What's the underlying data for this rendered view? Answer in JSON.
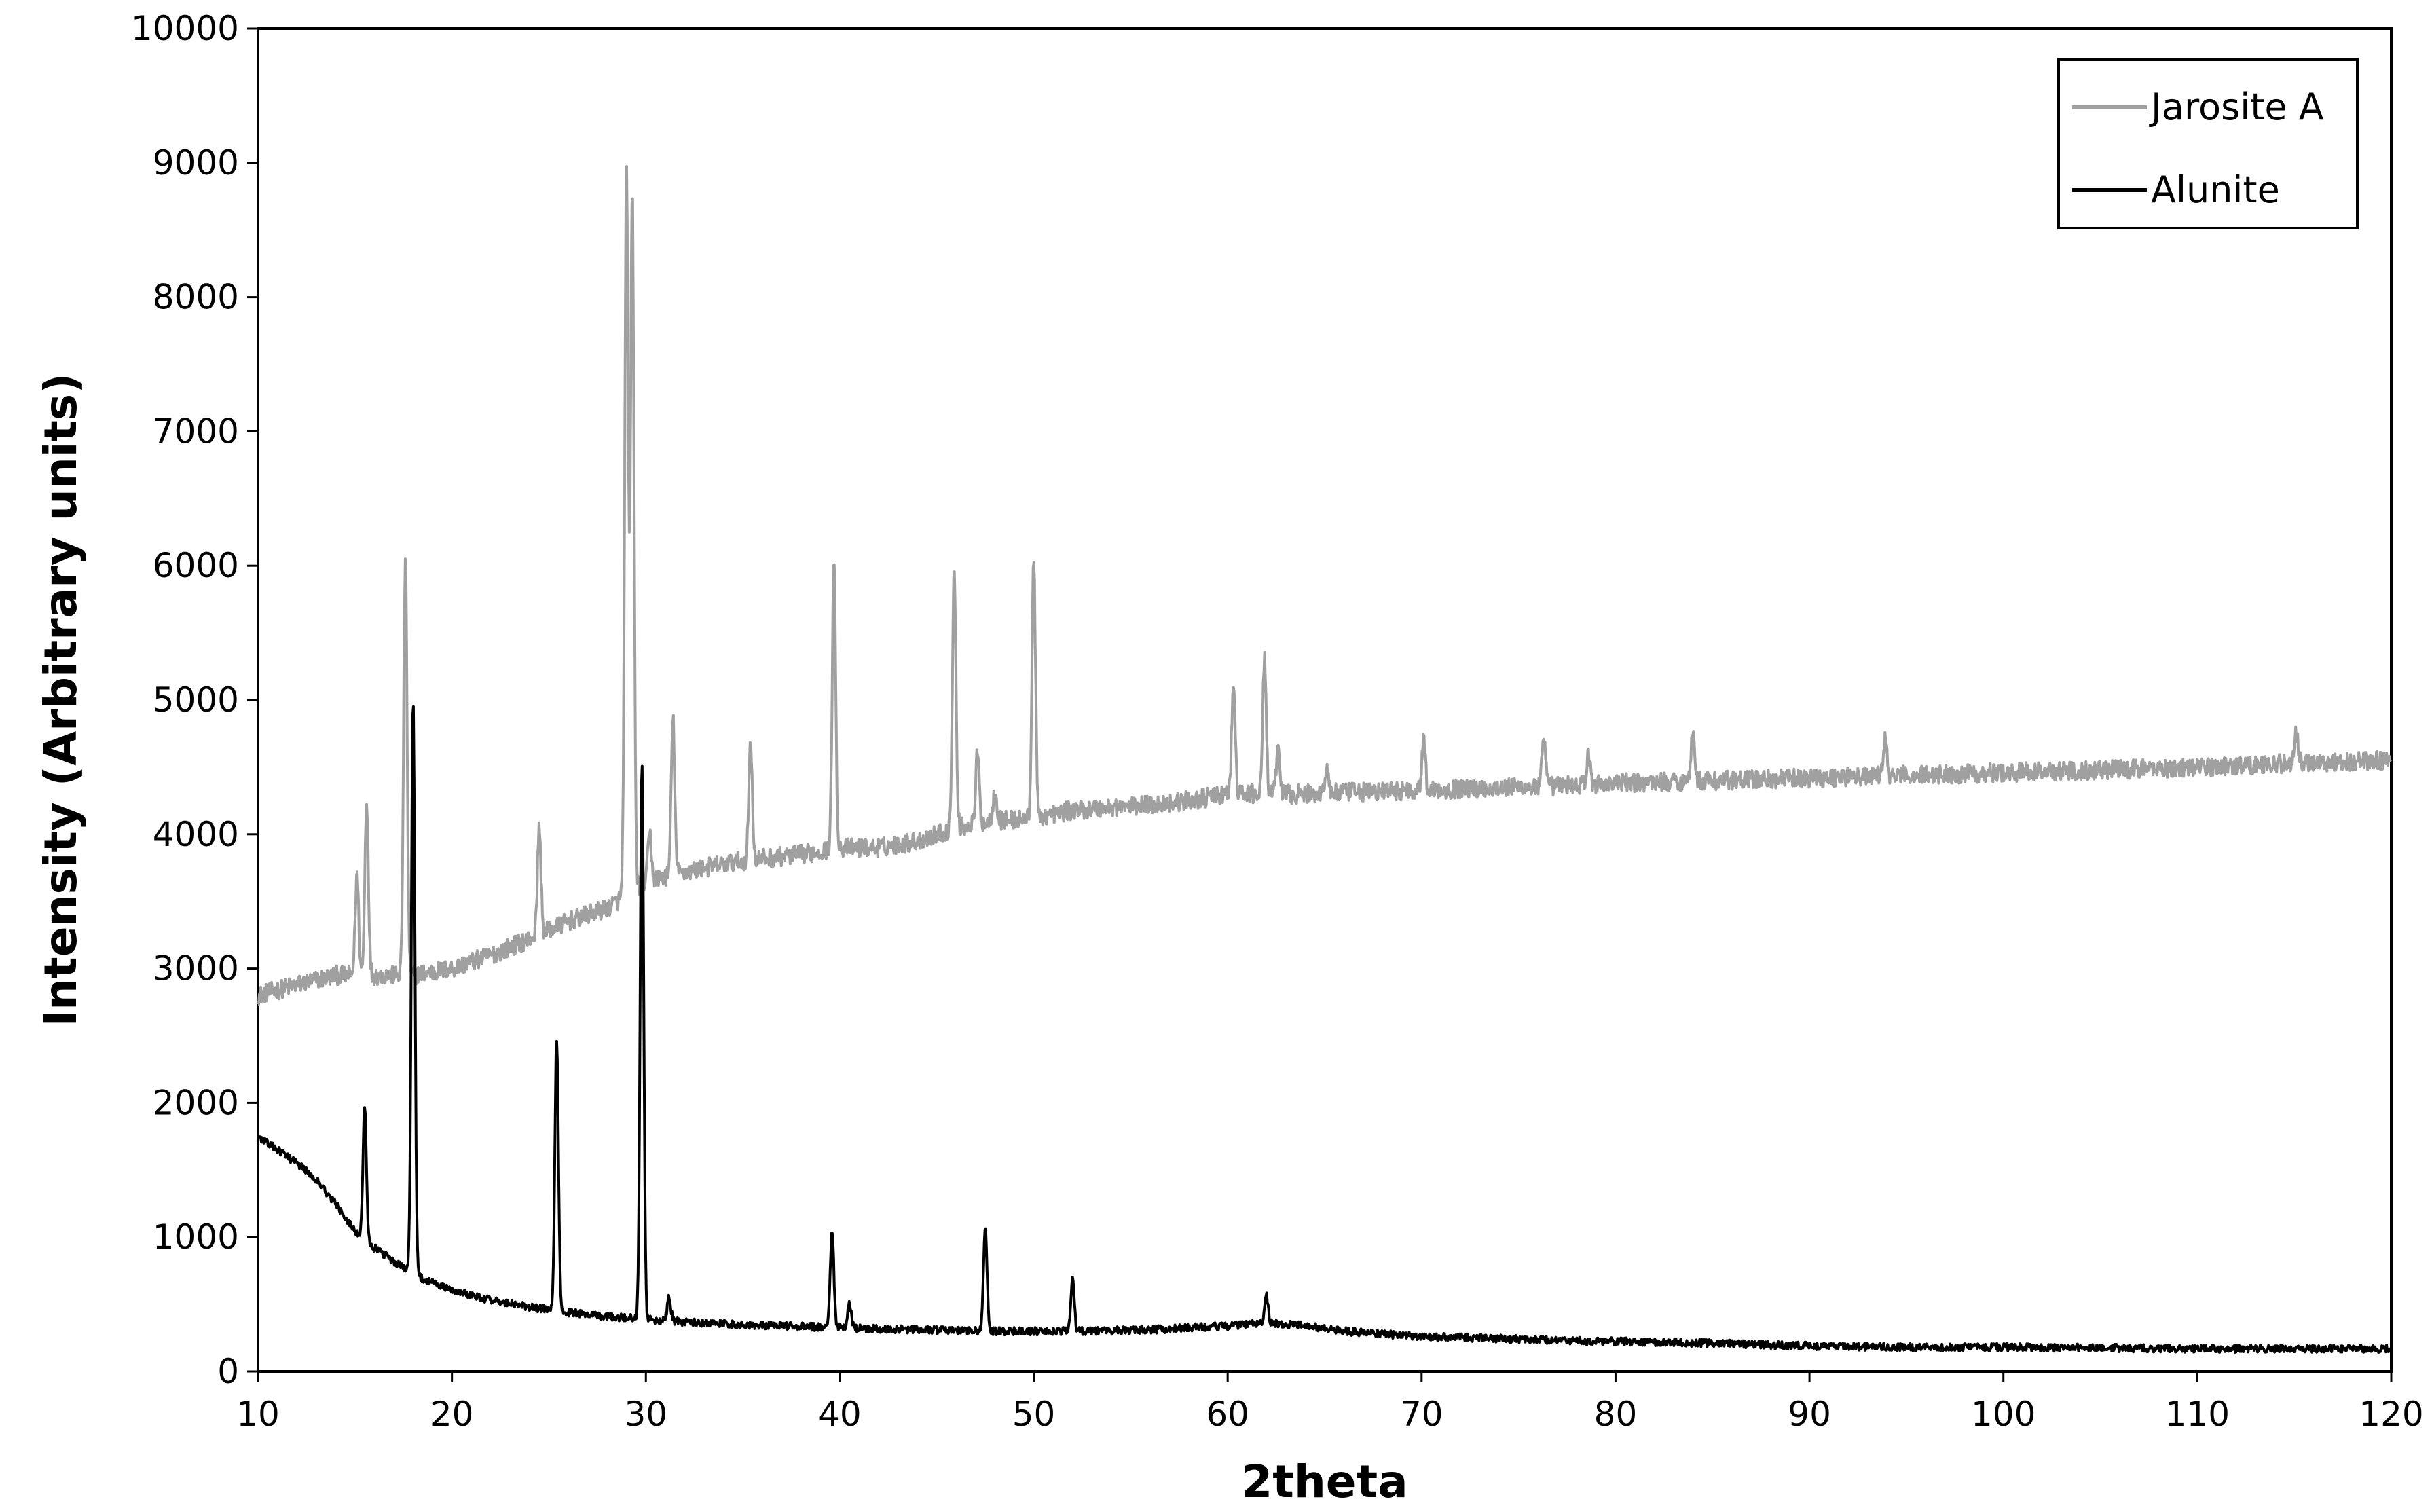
{
  "chart_data": {
    "type": "line",
    "title": "",
    "xlabel": "2theta",
    "ylabel": "Intensity (Arbitrary units)",
    "xlim": [
      10,
      120
    ],
    "ylim": [
      0,
      10000
    ],
    "xticks": [
      10,
      20,
      30,
      40,
      50,
      60,
      70,
      80,
      90,
      100,
      110,
      120
    ],
    "yticks": [
      0,
      1000,
      2000,
      3000,
      4000,
      5000,
      6000,
      7000,
      8000,
      9000,
      10000
    ],
    "grid": false,
    "legend_position": "top-right",
    "series": [
      {
        "name": "Jarosite A",
        "color": "#a0a0a0",
        "baseline": [
          [
            10,
            2800
          ],
          [
            12,
            2880
          ],
          [
            14,
            2950
          ],
          [
            16,
            2950
          ],
          [
            18,
            2950
          ],
          [
            20,
            3000
          ],
          [
            22,
            3100
          ],
          [
            24,
            3220
          ],
          [
            26,
            3350
          ],
          [
            28,
            3450
          ],
          [
            30,
            3650
          ],
          [
            32,
            3720
          ],
          [
            34,
            3780
          ],
          [
            36,
            3820
          ],
          [
            38,
            3850
          ],
          [
            40,
            3900
          ],
          [
            42,
            3900
          ],
          [
            44,
            3950
          ],
          [
            46,
            4050
          ],
          [
            48,
            4100
          ],
          [
            50,
            4120
          ],
          [
            52,
            4180
          ],
          [
            54,
            4200
          ],
          [
            56,
            4220
          ],
          [
            58,
            4250
          ],
          [
            60,
            4300
          ],
          [
            62,
            4300
          ],
          [
            64,
            4300
          ],
          [
            66,
            4310
          ],
          [
            68,
            4320
          ],
          [
            70,
            4330
          ],
          [
            75,
            4350
          ],
          [
            80,
            4380
          ],
          [
            85,
            4400
          ],
          [
            90,
            4420
          ],
          [
            95,
            4440
          ],
          [
            100,
            4460
          ],
          [
            105,
            4480
          ],
          [
            110,
            4500
          ],
          [
            115,
            4530
          ],
          [
            120,
            4550
          ]
        ],
        "peaks": [
          [
            15.1,
            3700
          ],
          [
            15.6,
            4250
          ],
          [
            17.6,
            6050
          ],
          [
            24.5,
            4050
          ],
          [
            29.0,
            8900
          ],
          [
            29.3,
            8800
          ],
          [
            30.2,
            4000
          ],
          [
            31.4,
            4850
          ],
          [
            35.4,
            4700
          ],
          [
            39.7,
            6000
          ],
          [
            45.9,
            5950
          ],
          [
            47.1,
            4600
          ],
          [
            48.0,
            4350
          ],
          [
            50.0,
            6050
          ],
          [
            60.3,
            5100
          ],
          [
            61.9,
            5300
          ],
          [
            62.6,
            4650
          ],
          [
            65.1,
            4500
          ],
          [
            70.1,
            4700
          ],
          [
            76.3,
            4700
          ],
          [
            78.6,
            4580
          ],
          [
            84.0,
            4800
          ],
          [
            93.9,
            4700
          ],
          [
            115.1,
            4750
          ]
        ],
        "noise": 70
      },
      {
        "name": "Alunite",
        "color": "#000000",
        "baseline": [
          [
            10,
            1750
          ],
          [
            11,
            1650
          ],
          [
            12,
            1550
          ],
          [
            13,
            1430
          ],
          [
            14,
            1250
          ],
          [
            15,
            1050
          ],
          [
            16,
            920
          ],
          [
            17,
            820
          ],
          [
            18,
            720
          ],
          [
            19,
            660
          ],
          [
            20,
            610
          ],
          [
            22,
            530
          ],
          [
            24,
            480
          ],
          [
            26,
            440
          ],
          [
            28,
            410
          ],
          [
            30,
            390
          ],
          [
            32,
            370
          ],
          [
            34,
            355
          ],
          [
            36,
            345
          ],
          [
            38,
            335
          ],
          [
            40,
            325
          ],
          [
            44,
            310
          ],
          [
            48,
            300
          ],
          [
            52,
            300
          ],
          [
            56,
            310
          ],
          [
            60,
            340
          ],
          [
            62,
            360
          ],
          [
            64,
            340
          ],
          [
            66,
            300
          ],
          [
            68,
            280
          ],
          [
            70,
            260
          ],
          [
            75,
            240
          ],
          [
            80,
            225
          ],
          [
            85,
            210
          ],
          [
            90,
            190
          ],
          [
            95,
            180
          ],
          [
            100,
            180
          ],
          [
            110,
            170
          ],
          [
            120,
            170
          ]
        ],
        "peaks": [
          [
            15.5,
            1950
          ],
          [
            18.0,
            5000
          ],
          [
            25.4,
            2480
          ],
          [
            29.8,
            4530
          ],
          [
            31.2,
            550
          ],
          [
            39.6,
            1050
          ],
          [
            40.5,
            500
          ],
          [
            47.5,
            1080
          ],
          [
            52.0,
            680
          ],
          [
            62.0,
            560
          ]
        ],
        "noise": 28
      }
    ]
  }
}
